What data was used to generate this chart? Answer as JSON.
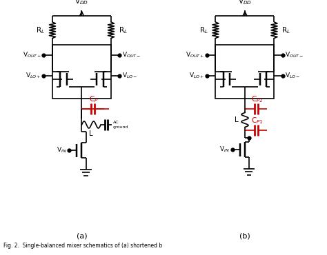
{
  "bg_color": "#ffffff",
  "black": "#000000",
  "red": "#cc0000",
  "label_a": "(a)",
  "label_b": "(b)",
  "caption": "Fig. 2. Single-balanced mixer schematics of (a) shortened b",
  "vdd_label": "V$_{DD}$",
  "rl_label": "R$_L$",
  "vout_plus": "V$_{OUT+}$",
  "vout_minus": "V$_{OUT-}$",
  "vlo_plus": "V$_{LO+}$",
  "vlo_minus": "V$_{LO-}$",
  "vin_label": "V$_{IN}$",
  "cp_label": "C$_P$",
  "cp1_label": "C$_{P1}$",
  "cp2_label": "C$_{P2}$",
  "l_label": "L",
  "ac_ground": "AC\nground",
  "fig_width": 4.74,
  "fig_height": 3.7
}
